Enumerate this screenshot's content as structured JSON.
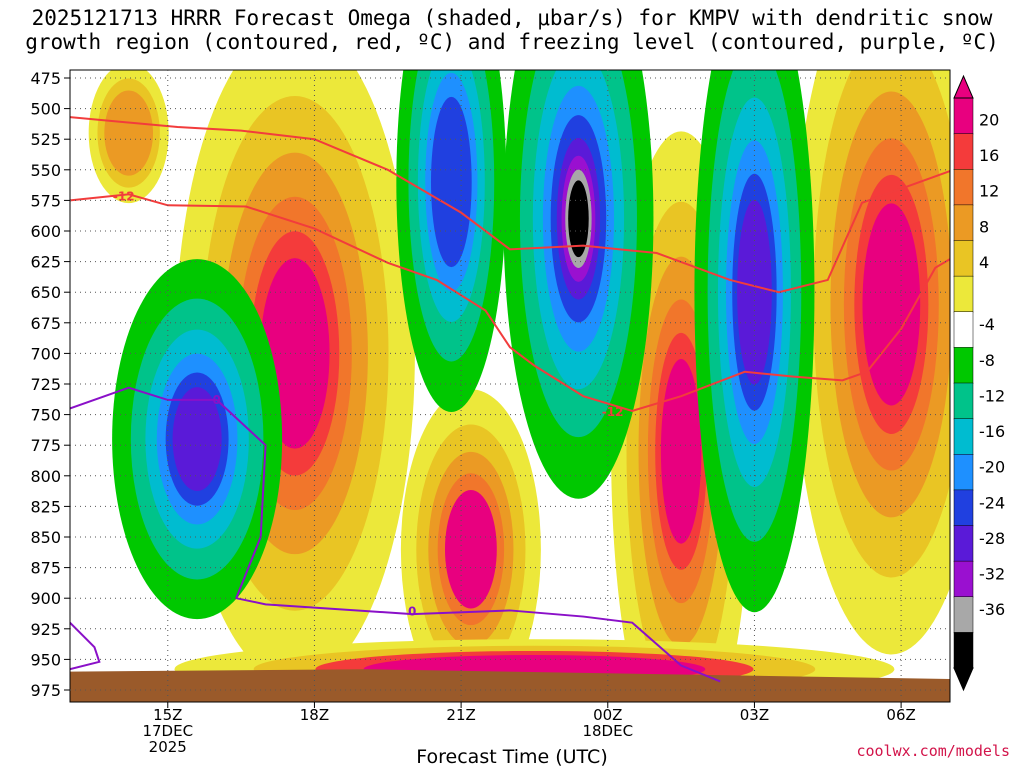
{
  "title_line1": "2025121713 HRRR Forecast Omega (shaded, μbar/s) for KMPV with dendritic snow",
  "title_line2": "growth region (contoured, red, ºC) and freezing level (contoured, purple, ºC)",
  "credit": "coolwx.com/models",
  "chart_data": {
    "type": "time-height cross section",
    "xlabel": "Forecast Time (UTC)",
    "x_ticks": [
      {
        "label": "15Z",
        "sub": "17DEC",
        "sub2": "2025"
      },
      {
        "label": "18Z",
        "sub": "",
        "sub2": ""
      },
      {
        "label": "21Z",
        "sub": "",
        "sub2": ""
      },
      {
        "label": "00Z",
        "sub": "18DEC",
        "sub2": ""
      },
      {
        "label": "03Z",
        "sub": "",
        "sub2": ""
      },
      {
        "label": "06Z",
        "sub": "",
        "sub2": ""
      }
    ],
    "x_tick_hours": [
      2,
      5,
      8,
      11,
      14,
      17
    ],
    "x_range_hours": [
      0,
      18
    ],
    "y_ticks": [
      "475",
      "500",
      "525",
      "550",
      "575",
      "600",
      "625",
      "650",
      "675",
      "700",
      "725",
      "750",
      "775",
      "800",
      "825",
      "850",
      "875",
      "900",
      "925",
      "950",
      "975"
    ],
    "y_range_hPa": [
      475,
      975
    ],
    "colorbar": {
      "labels": [
        "20",
        "16",
        "12",
        "8",
        "4",
        "-4",
        "-8",
        "-12",
        "-16",
        "-20",
        "-24",
        "-28",
        "-32",
        "-36"
      ],
      "colors": [
        "#e8007f",
        "#f43b3b",
        "#f1762b",
        "#eb9a24",
        "#e9c524",
        "#ece83a",
        "#ffffff",
        "#00c800",
        "#00c38a",
        "#00bcd0",
        "#1e90ff",
        "#2040e0",
        "#5a1ad8",
        "#9a10d0",
        "#a8a8a8",
        "#000000"
      ]
    },
    "contour_labels": {
      "dgz_label_left": "-12",
      "dgz_label_right": "-12",
      "freezing_label_a": "0",
      "freezing_label_b": "0"
    },
    "dgz_upper_contour": {
      "hours": [
        0,
        2.2,
        3.5,
        5.0,
        6.5,
        8.0,
        9.0,
        10.5,
        12.0,
        13.5,
        14.5,
        15.5,
        16.2,
        18.0
      ],
      "hPa": [
        507,
        515,
        518,
        525,
        550,
        585,
        615,
        612,
        618,
        640,
        650,
        640,
        577,
        551
      ]
    },
    "dgz_lower_contour": {
      "hours": [
        0,
        1.2,
        2.0,
        3.6,
        5.0,
        6.5,
        7.5,
        8.5,
        9.0,
        9.5,
        10.5,
        11.5,
        12.5,
        13.8,
        14.8,
        15.8,
        16.3,
        17.0,
        17.7,
        18.0
      ],
      "hPa": [
        575,
        570,
        579,
        580,
        598,
        626,
        640,
        665,
        695,
        710,
        735,
        747,
        735,
        715,
        719,
        722,
        715,
        680,
        630,
        623
      ]
    },
    "freezing_contour": {
      "hours": [
        0,
        1.2,
        2.0,
        3.0,
        4.0,
        3.9,
        3.4,
        4.0,
        7.0,
        9.0,
        10.5,
        11.5,
        12.5,
        13.3
      ],
      "hPa": [
        745,
        728,
        738,
        738,
        775,
        850,
        900,
        905,
        913,
        910,
        915,
        920,
        955,
        968
      ]
    },
    "freezing_contour2": {
      "hours": [
        0,
        0.5,
        0.6,
        0
      ],
      "hPa": [
        920,
        940,
        952,
        958
      ]
    }
  }
}
